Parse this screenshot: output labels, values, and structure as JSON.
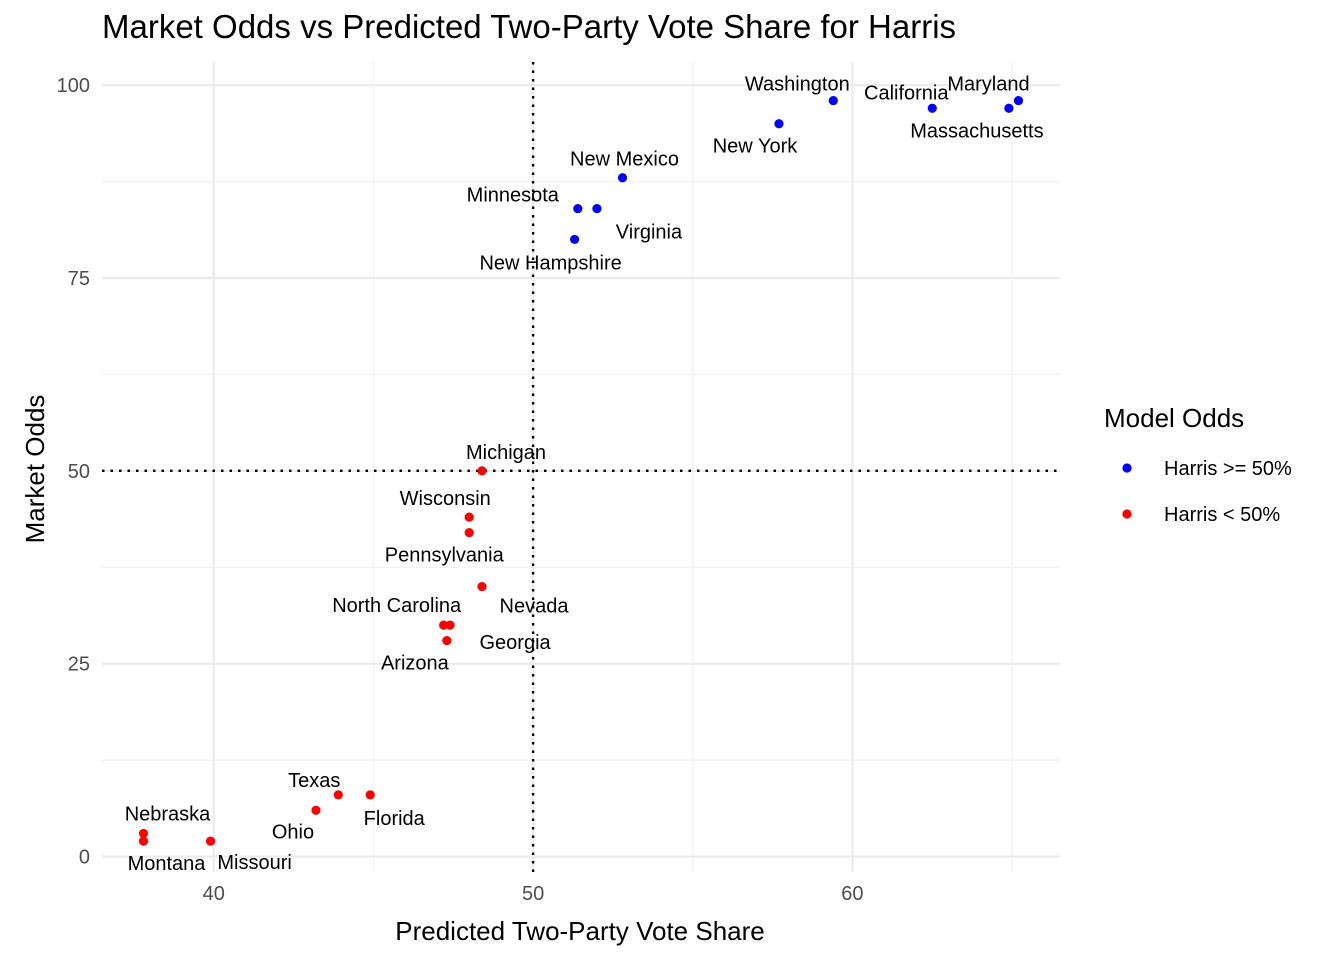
{
  "chart_data": {
    "type": "scatter",
    "title": "Market Odds vs Predicted Two-Party Vote Share for Harris",
    "xlabel": "Predicted Two-Party Vote Share",
    "ylabel": "Market Odds",
    "xlim": [
      36.5,
      66.5
    ],
    "ylim": [
      -2,
      103
    ],
    "x_ticks": [
      40,
      50,
      60
    ],
    "y_ticks": [
      0,
      25,
      50,
      75,
      100
    ],
    "grid": true,
    "reference_lines": {
      "x": 50,
      "y": 50,
      "style": "dotted"
    },
    "legend": {
      "title": "Model Odds",
      "placement": "right",
      "entries": [
        {
          "label": "Harris >= 50%",
          "color": "#0000ff"
        },
        {
          "label": "Harris < 50%",
          "color": "#ff0000"
        }
      ]
    },
    "series": [
      {
        "name": "Harris >= 50%",
        "color": "#0000ff",
        "points": [
          {
            "label": "Washington",
            "x": 59.4,
            "y": 98,
            "anchor": "above-left"
          },
          {
            "label": "California",
            "x": 62.5,
            "y": 97,
            "anchor": "above-left"
          },
          {
            "label": "Maryland",
            "x": 65.2,
            "y": 98,
            "anchor": "above-left"
          },
          {
            "label": "Massachusetts",
            "x": 64.9,
            "y": 97,
            "anchor": "below-left"
          },
          {
            "label": "New York",
            "x": 57.7,
            "y": 95,
            "anchor": "below-left"
          },
          {
            "label": "New Mexico",
            "x": 52.8,
            "y": 88,
            "anchor": "above"
          },
          {
            "label": "Minnesota",
            "x": 51.4,
            "y": 84,
            "anchor": "above-left"
          },
          {
            "label": "Virginia",
            "x": 52.0,
            "y": 84,
            "anchor": "below-right"
          },
          {
            "label": "New Hampshire",
            "x": 51.3,
            "y": 80,
            "anchor": "below-left"
          }
        ]
      },
      {
        "name": "Harris < 50%",
        "color": "#ff0000",
        "points": [
          {
            "label": "Michigan",
            "x": 48.4,
            "y": 50,
            "anchor": "above"
          },
          {
            "label": "Wisconsin",
            "x": 48.0,
            "y": 44,
            "anchor": "above-left"
          },
          {
            "label": "Pennsylvania",
            "x": 48.0,
            "y": 42,
            "anchor": "below"
          },
          {
            "label": "Nevada",
            "x": 48.4,
            "y": 35,
            "anchor": "below-right"
          },
          {
            "label": "North Carolina",
            "x": 47.2,
            "y": 30,
            "anchor": "above-left"
          },
          {
            "label": "Georgia",
            "x": 47.4,
            "y": 30,
            "anchor": "below-right"
          },
          {
            "label": "Arizona",
            "x": 47.3,
            "y": 28,
            "anchor": "below-left"
          },
          {
            "label": "Texas",
            "x": 43.9,
            "y": 8,
            "anchor": "above-left"
          },
          {
            "label": "Florida",
            "x": 44.9,
            "y": 8,
            "anchor": "below-right"
          },
          {
            "label": "Ohio",
            "x": 43.2,
            "y": 6,
            "anchor": "below-left"
          },
          {
            "label": "Nebraska",
            "x": 37.8,
            "y": 3,
            "anchor": "above-right"
          },
          {
            "label": "Montana",
            "x": 37.8,
            "y": 2,
            "anchor": "below-right"
          },
          {
            "label": "Missouri",
            "x": 39.9,
            "y": 2,
            "anchor": "below-right"
          }
        ]
      }
    ]
  }
}
